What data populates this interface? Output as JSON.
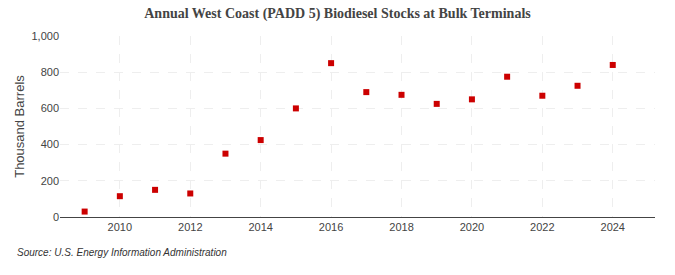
{
  "chart_data": {
    "type": "scatter",
    "title": "Annual West Coast (PADD 5) Biodiesel Stocks at Bulk Terminals",
    "ylabel": "Thousand Barrels",
    "annotations": [
      "Source: U.S. Energy Information Administration"
    ],
    "x": [
      2009,
      2010,
      2011,
      2012,
      2013,
      2014,
      2015,
      2016,
      2017,
      2018,
      2019,
      2020,
      2021,
      2022,
      2023,
      2024
    ],
    "values": [
      30,
      115,
      150,
      130,
      350,
      425,
      600,
      850,
      690,
      675,
      625,
      650,
      775,
      670,
      725,
      840
    ],
    "color": "#cc0000",
    "marker": "square",
    "xlim": [
      2008.3,
      2025.2
    ],
    "xticks": [
      2010,
      2012,
      2014,
      2016,
      2018,
      2020,
      2022,
      2024
    ],
    "ylim": [
      0,
      1000
    ],
    "yticks": [
      0,
      200,
      400,
      600,
      800,
      {
        "value": 1000,
        "label": "1,000"
      }
    ],
    "grid": true
  }
}
